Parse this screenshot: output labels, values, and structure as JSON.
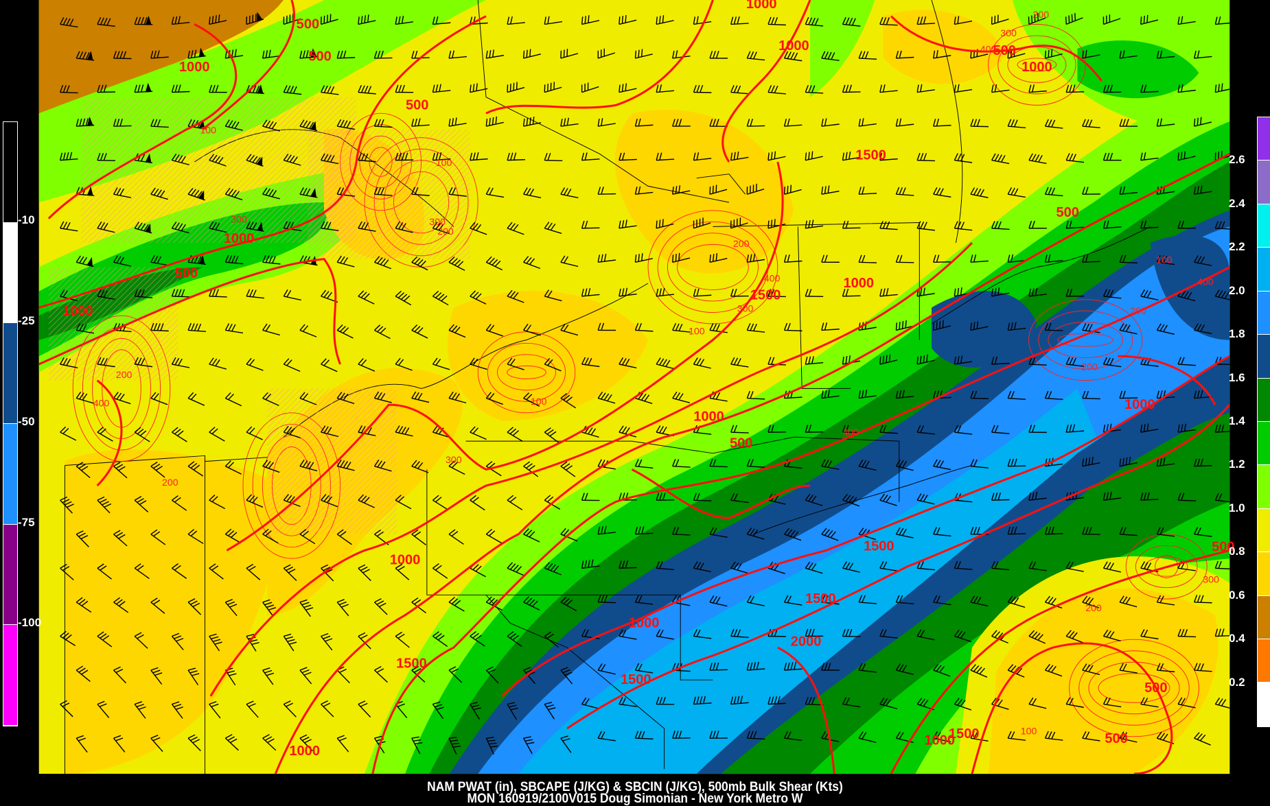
{
  "title_line1": "NAM PWAT (in), SBCAPE (J/KG) & SBCIN (J/KG), 500mb Bulk Shear (Kts)",
  "title_line2": "MON 160919/2100V015 Doug Simonian - New York Metro W",
  "cin_colorbar": {
    "colors": [
      "#000000",
      "#ffffff",
      "#104c8c",
      "#1e90ff",
      "#880088",
      "#ff00ff"
    ],
    "labels": [
      "-10",
      "-25",
      "-50",
      "-75",
      "-100"
    ]
  },
  "pwat_colorbar": {
    "colors": [
      "#9030e8",
      "#8c6cc8",
      "#00f0f0",
      "#00b0f0",
      "#1e90ff",
      "#104c8c",
      "#008800",
      "#00cc00",
      "#80ff00",
      "#f0ec00",
      "#ffd700",
      "#cc8000",
      "#ff7800",
      "#ffffff"
    ],
    "labels": [
      "2.6",
      "2.4",
      "2.2",
      "2.0",
      "1.8",
      "1.6",
      "1.4",
      "1.2",
      "1.0",
      "0.8",
      "0.6",
      "0.4",
      "0.2"
    ]
  },
  "cape_contour_labels": [
    "500",
    "1000",
    "500",
    "1000",
    "500",
    "1000",
    "500",
    "1000",
    "1500",
    "1000",
    "1000",
    "500",
    "1500",
    "500",
    "1000",
    "500",
    "1000",
    "1500",
    "1000",
    "1500",
    "2000",
    "1000",
    "1500",
    "1500",
    "1000",
    "1000",
    "500",
    "500",
    "1500",
    "500",
    "1000"
  ],
  "cin_contour_labels": [
    "100",
    "200",
    "300",
    "400",
    "100",
    "200",
    "300",
    "200",
    "100",
    "300",
    "200",
    "400",
    "100",
    "200",
    "300",
    "400",
    "200",
    "100",
    "300",
    "400",
    "200",
    "300",
    "200",
    "400",
    "100"
  ],
  "colors": {
    "cape_contour": "#ff1010",
    "cin_contour": "#ff2020",
    "shear_barb": "#000000",
    "border": "#000000"
  }
}
